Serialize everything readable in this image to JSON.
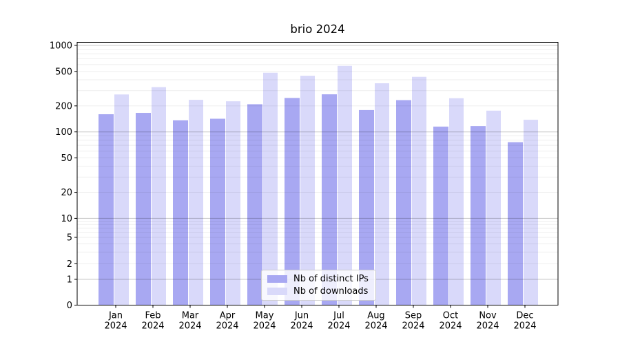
{
  "chart_data": {
    "type": "bar",
    "title": "brio 2024",
    "yscale": "symlog",
    "ylim": [
      0,
      1090
    ],
    "grid": true,
    "legend_position": "lower center",
    "categories": [
      "Jan",
      "Feb",
      "Mar",
      "Apr",
      "May",
      "Jun",
      "Jul",
      "Aug",
      "Sep",
      "Oct",
      "Nov",
      "Dec"
    ],
    "category_year": "2024",
    "y_ticks": [
      0,
      1,
      2,
      5,
      10,
      20,
      50,
      100,
      200,
      500,
      1000
    ],
    "series": [
      {
        "name": "Nb of distinct IPs",
        "color": "#a8a8f2",
        "values": [
          160,
          166,
          136,
          142,
          209,
          247,
          272,
          179,
          233,
          115,
          117,
          76
        ]
      },
      {
        "name": "Nb of downloads",
        "color": "#d9d9fa",
        "values": [
          271,
          329,
          235,
          226,
          483,
          446,
          580,
          365,
          433,
          245,
          176,
          138
        ]
      }
    ]
  }
}
